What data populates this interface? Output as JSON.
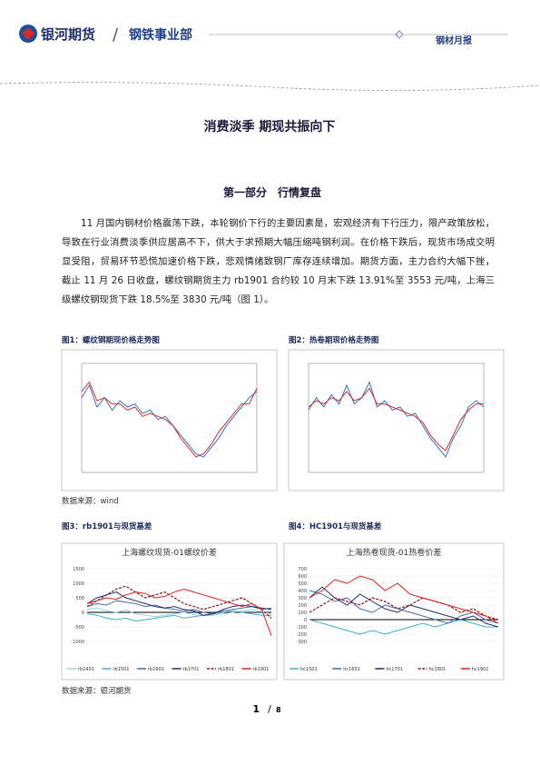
{
  "header": {
    "company": "银河期货",
    "department": "钢铁事业部",
    "report_type": "钢材月报"
  },
  "title": "消费淡季 期现共振向下",
  "section": "第一部分　行情复盘",
  "paragraph": "11 月国内钢材价格震荡下跌，本轮钢价下行的主要因素是，宏观经济有下行压力，限产政策放松，导致在行业消费淡季供应居高不下，供大于求预期大幅压缩吨钢利润。在价格下跌后，现货市场成交明显受阻，贸易环节恐慌加速价格下跌，悲观情绪致钢厂库存连续增加。期货方面，主力合约大幅下挫，截止 11 月 26 日收盘，螺纹钢期货主力 rb1901 合约较 10 月末下跌 13.91%至 3553 元/吨，上海三级螺纹钢现货下跌 18.5%至 3830 元/吨（图 1）。",
  "figures": [
    {
      "caption": "图1：螺纹钢期现价格走势图",
      "chart_data": {
        "type": "line",
        "ylim": [
          1500,
          5000
        ],
        "series": [
          {
            "color": "#3a6fc4",
            "values": [
              3900,
              4300,
              3600,
              3900,
              3500,
              3800,
              3600,
              3700,
              3400,
              3500,
              3200,
              3300,
              3000,
              2700,
              2400,
              2100,
              2000,
              2300,
              2600,
              3000,
              3300,
              3600,
              3900,
              4100
            ]
          },
          {
            "color": "#d03030",
            "values": [
              4100,
              4400,
              3800,
              3900,
              3700,
              3700,
              3500,
              3600,
              3300,
              3400,
              3300,
              3200,
              3000,
              2600,
              2300,
              2000,
              2100,
              2400,
              2800,
              3100,
              3400,
              3700,
              3700,
              4200
            ]
          }
        ]
      }
    },
    {
      "caption": "图2：热卷期现价格走势图",
      "chart_data": {
        "type": "line",
        "ylim": [
          1500,
          5000
        ],
        "series": [
          {
            "color": "#3a6fc4",
            "values": [
              3500,
              3900,
              3600,
              4000,
              3700,
              4300,
              3700,
              3900,
              4400,
              3600,
              3800,
              3500,
              3600,
              3300,
              3400,
              3000,
              2600,
              2300,
              2000,
              2600,
              3000,
              3600,
              3800,
              3600
            ]
          },
          {
            "color": "#d03030",
            "values": [
              3600,
              3800,
              3700,
              3900,
              3800,
              4100,
              3800,
              3900,
              4200,
              3700,
              3700,
              3600,
              3500,
              3400,
              3300,
              3100,
              2700,
              2400,
              2200,
              2700,
              3200,
              3500,
              3700,
              3700
            ]
          }
        ]
      }
    }
  ],
  "source_1": "数据来源：wind",
  "figures_2": [
    {
      "caption": "图3：rb1901与现货基差",
      "chart_data": {
        "type": "line",
        "title": "上海螺纹现货-01螺纹价差",
        "ylim": [
          -1000,
          1500
        ],
        "yticks": [
          1500,
          1000,
          500,
          0,
          -500,
          -1000
        ],
        "series": [
          {
            "name": "rb1401",
            "color": "#9ccfe8",
            "values": [
              100,
              150,
              50,
              0,
              80,
              -50,
              -100,
              -150,
              -100,
              -50,
              0,
              -80,
              -120,
              -100,
              -50,
              0,
              50,
              100,
              20,
              -50
            ]
          },
          {
            "name": "rb1501",
            "color": "#40b0c8",
            "values": [
              -50,
              -100,
              -200,
              -250,
              -200,
              -300,
              -250,
              -200,
              -150,
              -100,
              -200,
              -150,
              -100,
              -50,
              0,
              50,
              0,
              -50,
              -100,
              -100
            ]
          },
          {
            "name": "rb1601",
            "color": "#4a6ab0",
            "values": [
              200,
              300,
              250,
              400,
              350,
              300,
              200,
              250,
              150,
              100,
              50,
              100,
              0,
              -50,
              50,
              100,
              150,
              200,
              100,
              150
            ]
          },
          {
            "name": "rb1701",
            "color": "#1f2f6a",
            "values": [
              300,
              500,
              600,
              700,
              500,
              400,
              300,
              200,
              150,
              200,
              100,
              50,
              -100,
              -50,
              100,
              200,
              250,
              200,
              150,
              100
            ]
          },
          {
            "name": "rb1801",
            "color": "#8b1a1a",
            "dashed": true,
            "values": [
              200,
              400,
              600,
              800,
              900,
              700,
              500,
              600,
              700,
              500,
              300,
              200,
              100,
              200,
              300,
              400,
              500,
              300,
              100,
              -200
            ]
          },
          {
            "name": "rb1901",
            "color": "#e02020",
            "values": [
              300,
              400,
              500,
              450,
              600,
              700,
              650,
              500,
              550,
              700,
              800,
              700,
              600,
              500,
              400,
              300,
              200,
              300,
              100,
              -800
            ]
          }
        ]
      }
    },
    {
      "caption": "图4：HC1901与现货基差",
      "chart_data": {
        "type": "line",
        "title": "上海热卷现货-01热卷价差",
        "ylim": [
          -300,
          700
        ],
        "yticks": [
          700,
          600,
          500,
          400,
          300,
          200,
          100,
          0,
          -100,
          -200,
          -300
        ],
        "series": [
          {
            "name": "hc1501",
            "color": "#40b0c8",
            "values": [
              0,
              -50,
              -100,
              -150,
              -200,
              -150,
              -200,
              -150,
              -100,
              -50,
              -100,
              -50,
              0,
              -50,
              -100,
              -100
            ]
          },
          {
            "name": "hc1601",
            "color": "#4a6ab0",
            "values": [
              400,
              350,
              250,
              300,
              150,
              100,
              200,
              150,
              100,
              50,
              0,
              -50,
              50,
              100,
              0,
              -50
            ]
          },
          {
            "name": "hc1701",
            "color": "#1f2f6a",
            "values": [
              300,
              450,
              300,
              200,
              350,
              250,
              150,
              100,
              200,
              150,
              100,
              50,
              0,
              50,
              -50,
              -100
            ]
          },
          {
            "name": "hc1801",
            "color": "#8b1a1a",
            "dashed": true,
            "values": [
              100,
              200,
              300,
              250,
              200,
              300,
              250,
              150,
              200,
              300,
              250,
              200,
              100,
              150,
              50,
              0
            ]
          },
          {
            "name": "hc1901",
            "color": "#e02020",
            "values": [
              300,
              400,
              550,
              500,
              600,
              550,
              400,
              500,
              350,
              300,
              250,
              200,
              150,
              100,
              50,
              -50
            ]
          }
        ]
      }
    }
  ],
  "source_2": "数据来源：银河期货",
  "page": {
    "current": 1,
    "total": 8
  }
}
